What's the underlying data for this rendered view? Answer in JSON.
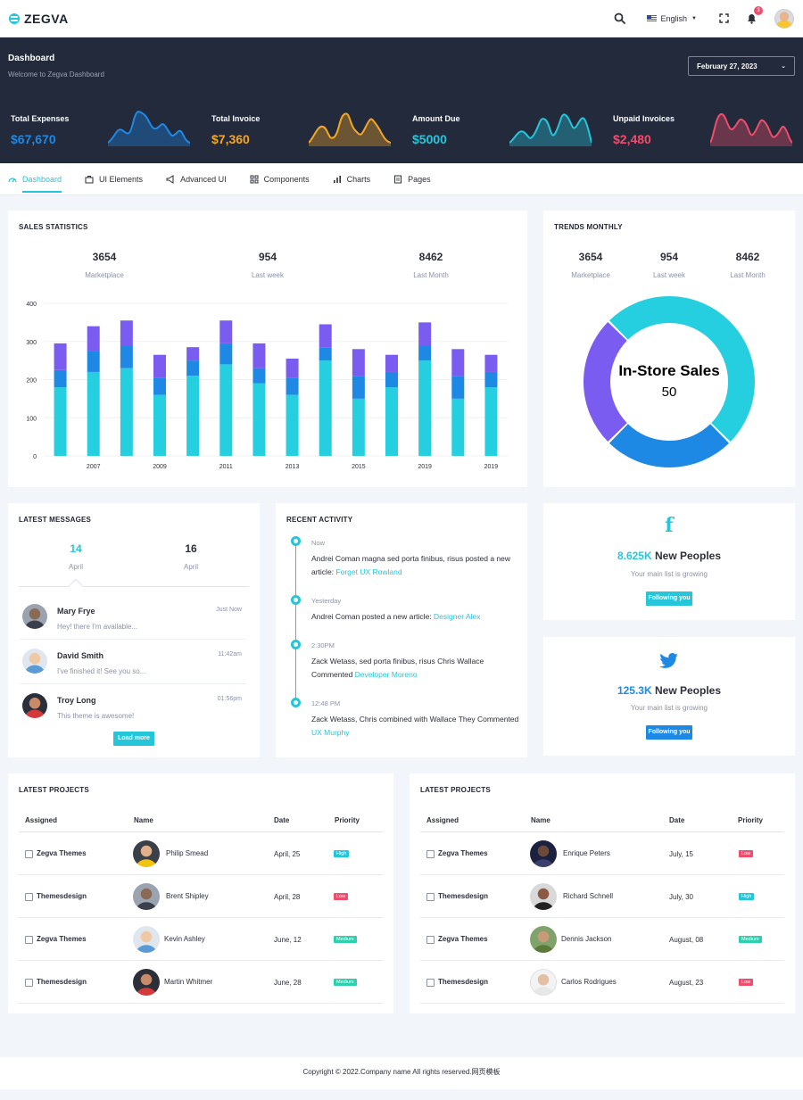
{
  "app": {
    "logo_text": "ZEGVA"
  },
  "topbar": {
    "language": "English",
    "notification_count": "3"
  },
  "header": {
    "title": "Dashboard",
    "subtitle": "Welcome to Zegva Dashboard",
    "date": "February 27, 2023"
  },
  "stats": [
    {
      "label": "Total Expenses",
      "value": "$67,670",
      "color": "#1e88e5"
    },
    {
      "label": "Total Invoice",
      "value": "$7,360",
      "color": "#f5a623"
    },
    {
      "label": "Amount Due",
      "value": "$5000",
      "color": "#26c6da"
    },
    {
      "label": "Unpaid Invoices",
      "value": "$2,480",
      "color": "#ef4d6b"
    }
  ],
  "nav": {
    "items": [
      {
        "label": "Dashboard",
        "icon": "gauge-icon",
        "active": true
      },
      {
        "label": "UI Elements",
        "icon": "briefcase-icon"
      },
      {
        "label": "Advanced UI",
        "icon": "megaphone-icon"
      },
      {
        "label": "Components",
        "icon": "grid-icon"
      },
      {
        "label": "Charts",
        "icon": "bar-chart-icon"
      },
      {
        "label": "Pages",
        "icon": "file-icon"
      }
    ]
  },
  "sales_statistics": {
    "title": "SALES STATISTICS",
    "kpis": [
      {
        "value": "3654",
        "label": "Marketplace"
      },
      {
        "value": "954",
        "label": "Last week"
      },
      {
        "value": "8462",
        "label": "Last Month"
      }
    ]
  },
  "trends_monthly": {
    "title": "TRENDS MONTHLY",
    "kpis": [
      {
        "value": "3654",
        "label": "Marketplace"
      },
      {
        "value": "954",
        "label": "Last week"
      },
      {
        "value": "8462",
        "label": "Last Month"
      }
    ],
    "center_label": "In-Store Sales",
    "center_value": "50"
  },
  "chart_data": [
    {
      "type": "bar",
      "stacked": true,
      "categories": [
        "",
        "2007",
        "",
        "2009",
        "",
        "2011",
        "",
        "2013",
        "",
        "2015",
        "",
        "2019",
        "",
        "2019"
      ],
      "series": [
        {
          "values": [
            180,
            220,
            230,
            160,
            210,
            240,
            190,
            160,
            250,
            150,
            180,
            250,
            150,
            180
          ],
          "color": "#26cfe0"
        },
        {
          "values": [
            45,
            55,
            60,
            45,
            40,
            55,
            40,
            45,
            35,
            60,
            40,
            40,
            60,
            40
          ],
          "color": "#1e88e5"
        },
        {
          "values": [
            70,
            65,
            65,
            60,
            35,
            60,
            65,
            50,
            60,
            70,
            45,
            60,
            70,
            45
          ],
          "color": "#7b5cf0"
        }
      ],
      "ylim": [
        0,
        400
      ],
      "yticks": [
        0,
        100,
        200,
        300,
        400
      ],
      "grid": true
    },
    {
      "type": "pie",
      "donut": true,
      "slices": [
        {
          "value": 50,
          "color": "#26cfe0"
        },
        {
          "value": 25,
          "color": "#1e88e5"
        },
        {
          "value": 25,
          "color": "#7b5cf0"
        }
      ]
    }
  ],
  "latest_messages": {
    "title": "LATEST MESSAGES",
    "dates": [
      {
        "day": "14",
        "month": "April",
        "active": true
      },
      {
        "day": "16",
        "month": "April",
        "active": false
      }
    ],
    "messages": [
      {
        "name": "Mary Frye",
        "text": "Hey! there I'm available...",
        "time": "Just Now"
      },
      {
        "name": "David Smith",
        "text": "I've finished it! See you so...",
        "time": "11:42am"
      },
      {
        "name": "Troy Long",
        "text": "This theme is awesome!",
        "time": "01:56pm"
      }
    ],
    "load_more": "Load more"
  },
  "recent_activity": {
    "title": "RECENT ACTIVITY",
    "items": [
      {
        "time": "Now",
        "text": "Andrei Coman magna sed porta finibus, risus posted a new article: ",
        "link": "Forget UX Rowland"
      },
      {
        "time": "Yesterday",
        "text": "Andrei Coman posted a new article: ",
        "link": "Designer Alex"
      },
      {
        "time": "2:30PM",
        "text": "Zack Wetass, sed porta finibus, risus Chris Wallace Commented ",
        "link": "Developer Moreno"
      },
      {
        "time": "12:48 PM",
        "text": "Zack Wetass, Chris combined with Wallace They Commented ",
        "link": "UX Murphy"
      }
    ]
  },
  "social": [
    {
      "network": "facebook",
      "icon": "facebook-icon",
      "count": "8.625K",
      "label": "New Peoples",
      "sub": "Your main list is growing",
      "button": "Following you",
      "color": "#26c6da"
    },
    {
      "network": "twitter",
      "icon": "twitter-icon",
      "count": "125.3K",
      "label": "New Peoples",
      "sub": "Your main list is growing",
      "button": "Following you",
      "color": "#1e88e5"
    }
  ],
  "projects_left": {
    "title": "LATEST PROJECTS",
    "headers": [
      "Assigned",
      "Name",
      "Date",
      "Priority"
    ],
    "rows": [
      {
        "assigned": "Zegva Themes",
        "name": "Philip Smead",
        "date": "April, 25",
        "priority": "High"
      },
      {
        "assigned": "Themesdesign",
        "name": "Brent Shipley",
        "date": "April, 28",
        "priority": "Low"
      },
      {
        "assigned": "Zegva Themes",
        "name": "Kevin Ashley",
        "date": "June, 12",
        "priority": "Medium"
      },
      {
        "assigned": "Themesdesign",
        "name": "Martin Whitmer",
        "date": "June, 28",
        "priority": "Medium"
      }
    ]
  },
  "projects_right": {
    "title": "LATEST PROJECTS",
    "headers": [
      "Assigned",
      "Name",
      "Date",
      "Priority"
    ],
    "rows": [
      {
        "assigned": "Zegva Themes",
        "name": "Enrique Peters",
        "date": "July, 15",
        "priority": "Low"
      },
      {
        "assigned": "Themesdesign",
        "name": "Richard Schnell",
        "date": "July, 30",
        "priority": "High"
      },
      {
        "assigned": "Zegva Themes",
        "name": "Dennis Jackson",
        "date": "August, 08",
        "priority": "Medium"
      },
      {
        "assigned": "Themesdesign",
        "name": "Carlos Rodrigues",
        "date": "August, 23",
        "priority": "Low"
      }
    ]
  },
  "footer": {
    "text": "Copyright © 2022.Company name All rights reserved.网页模板"
  }
}
